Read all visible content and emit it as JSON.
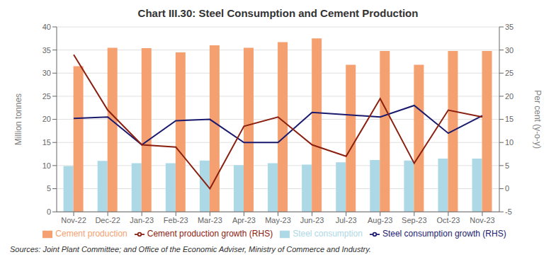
{
  "chart_data": {
    "type": "bar",
    "title": "Chart III.30: Steel Consumption and Cement Production",
    "categories": [
      "Nov-22",
      "Dec-22",
      "Jan-23",
      "Feb-23",
      "Mar-23",
      "Apr-23",
      "May-23",
      "Jun-23",
      "Jul-23",
      "Aug-23",
      "Sep-23",
      "Oct-23",
      "Nov-23"
    ],
    "series": [
      {
        "name": "Steel consumption",
        "type": "bar",
        "color": "#add8e6",
        "values": [
          9.9,
          11.0,
          10.5,
          10.5,
          11.1,
          10.1,
          10.5,
          10.2,
          10.7,
          11.2,
          11.1,
          11.5,
          11.5
        ]
      },
      {
        "name": "Cement production",
        "type": "bar",
        "color": "#f4a070",
        "values": [
          31.5,
          35.5,
          35.4,
          34.5,
          36.0,
          35.5,
          36.7,
          37.5,
          31.8,
          34.8,
          31.8,
          34.8,
          34.8
        ]
      },
      {
        "name": "Steel consumption growth (RHS)",
        "type": "line",
        "axis": "y2",
        "color": "#1a1a6e",
        "values": [
          15.2,
          15.5,
          9.5,
          14.7,
          15.0,
          10.0,
          10.0,
          16.5,
          16.0,
          15.5,
          18.0,
          12.0,
          15.8
        ]
      },
      {
        "name": "Cement production growth (RHS)",
        "type": "line",
        "axis": "y2",
        "color": "#8b2010",
        "values": [
          29.0,
          17.0,
          9.5,
          9.0,
          0.0,
          13.5,
          15.5,
          9.5,
          7.0,
          19.5,
          5.5,
          17.0,
          15.5
        ]
      }
    ],
    "ylim": [
      0,
      40
    ],
    "yticks": [
      0,
      5,
      10,
      15,
      20,
      25,
      30,
      35,
      40
    ],
    "y2lim": [
      -5,
      35
    ],
    "y2ticks": [
      -5,
      0,
      5,
      10,
      15,
      20,
      25,
      30,
      35
    ],
    "ylabel": "Million tonnes",
    "y2label": "Per cent (y-o-y)",
    "source": "Sources: Joint Plant Committee; and Office of the Economic Adviser, Ministry of Commerce and Industry.",
    "grid": true,
    "legend": "bottom"
  }
}
